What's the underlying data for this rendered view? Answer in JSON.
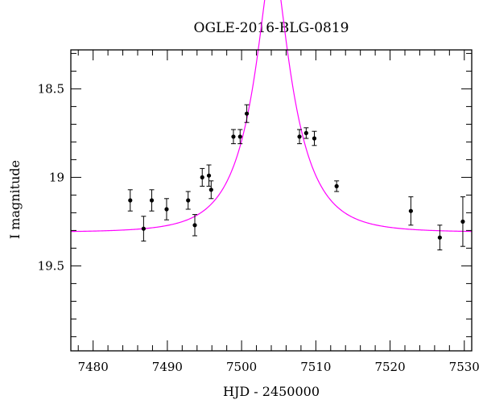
{
  "chart_data": {
    "type": "scatter",
    "title": "OGLE-2016-BLG-0819",
    "xlabel": "HJD - 2450000",
    "ylabel": "I magnitude",
    "xlim": [
      7477,
      7531
    ],
    "ylim": [
      19.98,
      18.28
    ],
    "y_inverted": true,
    "x_major_ticks": [
      7480,
      7490,
      7500,
      7510,
      7520,
      7530
    ],
    "x_tick_labels": [
      "7480",
      "7490",
      "7500",
      "7510",
      "7520",
      "7530"
    ],
    "y_major_ticks": [
      18.5,
      19,
      19.5
    ],
    "y_tick_labels": [
      "18.5",
      "19",
      "19.5"
    ],
    "grid": false,
    "colors": {
      "points": "#000000",
      "model": "#ff00ff",
      "axes": "#000000"
    },
    "series": [
      {
        "type": "scatter",
        "x": [
          7485,
          7486.8,
          7487.9,
          7489.9,
          7492.8,
          7493.7,
          7494.7,
          7495.6,
          7495.9,
          7498.9,
          7499.8,
          7500.7,
          7507.8,
          7508.7,
          7509.8,
          7512.8,
          7522.8,
          7526.7,
          7529.8
        ],
        "y": [
          19.13,
          19.29,
          19.13,
          19.18,
          19.13,
          19.27,
          19.0,
          18.99,
          19.07,
          18.77,
          18.77,
          18.64,
          18.77,
          18.75,
          18.78,
          19.05,
          19.19,
          19.34,
          19.25
        ],
        "yerr": [
          0.06,
          0.07,
          0.06,
          0.06,
          0.05,
          0.06,
          0.05,
          0.06,
          0.05,
          0.04,
          0.04,
          0.05,
          0.04,
          0.03,
          0.04,
          0.03,
          0.08,
          0.07,
          0.14
        ]
      },
      {
        "type": "line",
        "model": "paczynski",
        "t0": 7504.2,
        "u0": 0.25,
        "tE": 6.0,
        "baseline_mag": 19.31,
        "x_range": [
          7477,
          7531
        ]
      }
    ]
  }
}
